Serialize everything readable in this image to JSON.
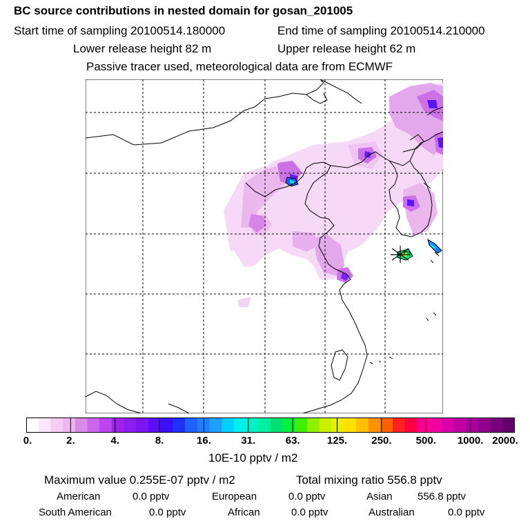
{
  "header": {
    "title": "BC  source contributions in nested domain for gosan_201005",
    "start_sampling": "Start time of sampling 20100514.180000",
    "end_sampling": "End time of sampling 20100514.210000",
    "lower_release": "Lower release height   82 m",
    "upper_release": "Upper release height   62 m",
    "tracer_note": "Passive tracer used, meteorological data are from ECMWF"
  },
  "map": {
    "region": "East Asia nested domain",
    "colors": {
      "coast": "#000000",
      "grid": "#000000",
      "plume_light": "#f3d0f5",
      "plume_mid": "#d98ee3",
      "plume_strong": "#b030e0",
      "plume_core": "#6a10e8",
      "hotspot": "#1e5fff"
    }
  },
  "legend": {
    "tick_labels": [
      "0.",
      "2.",
      "4.",
      "8.",
      "16.",
      "31.",
      "63.",
      "125.",
      "250.",
      "500.",
      "1000.",
      "2000."
    ],
    "colors": [
      "#ffffff",
      "#fbe6fb",
      "#f5cdf5",
      "#efb4f0",
      "#d98be6",
      "#cc66ee",
      "#bb44ee",
      "#a020f0",
      "#8a1ef0",
      "#7a14f2",
      "#5a10f5",
      "#3a10f8",
      "#2030ff",
      "#2060ff",
      "#1e7fff",
      "#1ea0ff",
      "#00d0ff",
      "#00f0f0",
      "#00f0c8",
      "#00f0a0",
      "#00e070",
      "#00f040",
      "#40f000",
      "#90f000",
      "#c8f000",
      "#e8f000",
      "#ffe000",
      "#ffc000",
      "#ff9000",
      "#ff6000",
      "#ff2020",
      "#ff0040",
      "#ff0090",
      "#f000a0",
      "#d800a8",
      "#c000a0",
      "#a8009a",
      "#90008a",
      "#78007a",
      "#600068"
    ],
    "units": "10E-10 pptv / m2"
  },
  "stats": {
    "maximum": "Maximum value  0.255E-07 pptv / m2",
    "total": "Total mixing ratio      556.8 pptv",
    "american_label": "American",
    "american_value": "0.0 pptv",
    "european_label": "European",
    "european_value": "0.0 pptv",
    "asian_label": "Asian",
    "asian_value": "556.8 pptv",
    "south_american_label": "South American",
    "south_american_value": "0.0 pptv",
    "african_label": "African",
    "african_value": "0.0 pptv",
    "australian_label": "Australian",
    "australian_value": "0.0 pptv"
  }
}
